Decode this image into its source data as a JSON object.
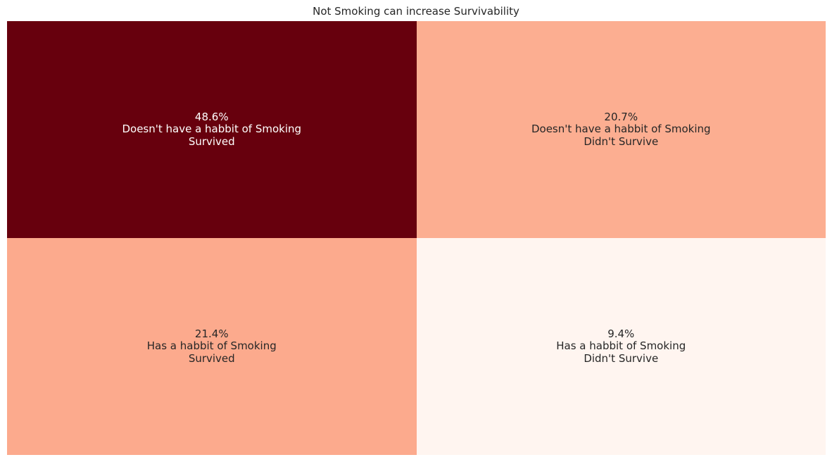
{
  "chart_data": {
    "type": "heatmap",
    "title": "Not Smoking can increase Survivability",
    "rows": [
      "Doesn't have a habbit of Smoking",
      "Has a habbit of Smoking"
    ],
    "columns": [
      "Survived",
      "Didn't Survive"
    ],
    "values": [
      [
        48.6,
        20.7
      ],
      [
        21.4,
        9.4
      ]
    ],
    "value_labels": [
      [
        "48.6%",
        "20.7%"
      ],
      [
        "21.4%",
        "9.4%"
      ]
    ],
    "colormap": "Reds",
    "colors": [
      [
        "#67000d",
        "#fcae91"
      ],
      [
        "#fcaa8d",
        "#fff5f0"
      ]
    ],
    "text_colors": [
      [
        "#ffffff",
        "#262626"
      ],
      [
        "#262626",
        "#262626"
      ]
    ],
    "legend": false,
    "grid": false
  }
}
